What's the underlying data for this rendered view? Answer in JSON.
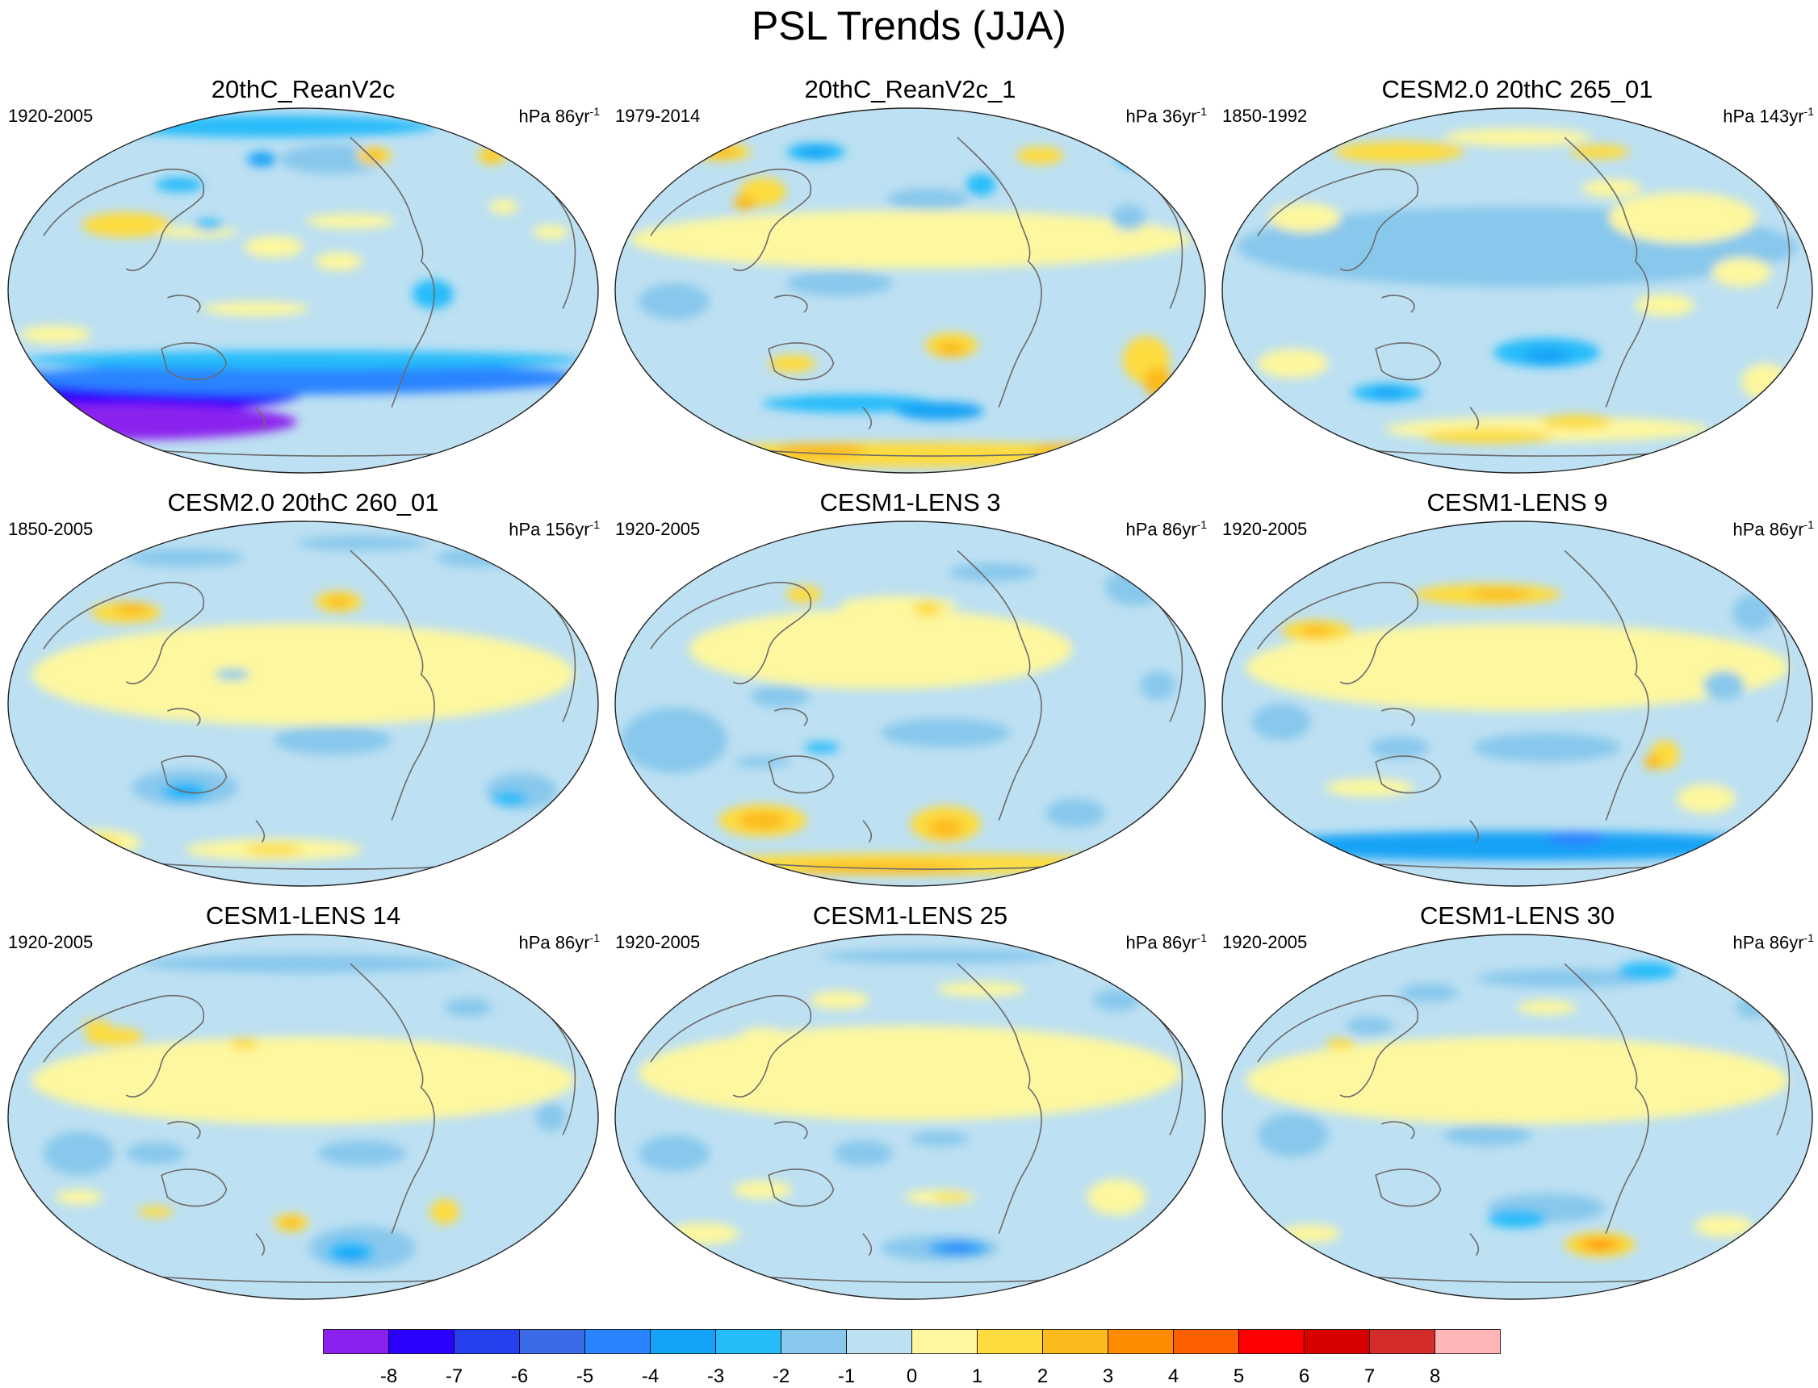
{
  "title": "PSL Trends (JJA)",
  "panels": [
    {
      "title": "20thC_ReanV2c",
      "period": "1920-2005",
      "units": "hPa 86yr",
      "units_exp": "-1",
      "blobs": [
        [
          0.1,
          0.78,
          0.8,
          0.12,
          -7
        ],
        [
          0.18,
          0.86,
          0.62,
          0.1,
          -8
        ],
        [
          0.5,
          0.74,
          0.95,
          0.09,
          -4
        ],
        [
          0.5,
          0.69,
          0.95,
          0.05,
          -2
        ],
        [
          0.56,
          0.42,
          0.08,
          0.05,
          1
        ],
        [
          0.2,
          0.32,
          0.15,
          0.07,
          2
        ],
        [
          0.45,
          0.38,
          0.1,
          0.06,
          1
        ],
        [
          0.45,
          0.05,
          0.55,
          0.06,
          -2
        ],
        [
          0.55,
          0.14,
          0.18,
          0.08,
          -1
        ],
        [
          0.43,
          0.14,
          0.05,
          0.04,
          -3
        ],
        [
          0.29,
          0.21,
          0.08,
          0.04,
          -2
        ],
        [
          0.32,
          0.34,
          0.14,
          0.03,
          1
        ],
        [
          0.34,
          0.32,
          0.05,
          0.03,
          -2
        ],
        [
          0.62,
          0.13,
          0.06,
          0.05,
          2
        ],
        [
          0.62,
          0.13,
          0.03,
          0.03,
          3
        ],
        [
          0.82,
          0.13,
          0.05,
          0.05,
          2
        ],
        [
          0.82,
          0.13,
          0.02,
          0.03,
          3
        ],
        [
          0.84,
          0.27,
          0.05,
          0.04,
          1
        ],
        [
          0.58,
          0.31,
          0.15,
          0.04,
          1
        ],
        [
          0.92,
          0.34,
          0.06,
          0.04,
          1
        ],
        [
          0.08,
          0.62,
          0.12,
          0.05,
          1
        ],
        [
          0.42,
          0.55,
          0.18,
          0.04,
          1
        ],
        [
          0.72,
          0.51,
          0.07,
          0.08,
          -2
        ]
      ]
    },
    {
      "title": "20thC_ReanV2c_1",
      "period": "1979-2014",
      "units": "hPa 36yr",
      "units_exp": "-1",
      "blobs": [
        [
          0.5,
          0.36,
          0.95,
          0.16,
          1
        ],
        [
          0.18,
          0.12,
          0.1,
          0.05,
          2
        ],
        [
          0.18,
          0.12,
          0.06,
          0.03,
          3
        ],
        [
          0.34,
          0.12,
          0.1,
          0.05,
          -2
        ],
        [
          0.34,
          0.12,
          0.06,
          0.03,
          -3
        ],
        [
          0.25,
          0.23,
          0.08,
          0.08,
          2
        ],
        [
          0.22,
          0.26,
          0.04,
          0.04,
          3
        ],
        [
          0.53,
          0.25,
          0.14,
          0.06,
          -1
        ],
        [
          0.72,
          0.13,
          0.08,
          0.05,
          2
        ],
        [
          0.89,
          0.14,
          0.08,
          0.05,
          -2
        ],
        [
          0.87,
          0.3,
          0.06,
          0.07,
          -1
        ],
        [
          0.62,
          0.21,
          0.05,
          0.06,
          -2
        ],
        [
          0.1,
          0.53,
          0.12,
          0.1,
          -1
        ],
        [
          0.38,
          0.48,
          0.18,
          0.07,
          -1
        ],
        [
          0.57,
          0.65,
          0.09,
          0.07,
          2
        ],
        [
          0.57,
          0.66,
          0.05,
          0.04,
          3
        ],
        [
          0.3,
          0.7,
          0.08,
          0.05,
          2
        ],
        [
          0.4,
          0.81,
          0.28,
          0.05,
          -2
        ],
        [
          0.55,
          0.83,
          0.15,
          0.05,
          -3
        ],
        [
          0.3,
          0.81,
          0.1,
          0.03,
          -2
        ],
        [
          0.9,
          0.69,
          0.08,
          0.13,
          2
        ],
        [
          0.92,
          0.75,
          0.05,
          0.08,
          3
        ],
        [
          0.5,
          0.95,
          0.9,
          0.07,
          2
        ],
        [
          0.35,
          0.94,
          0.15,
          0.04,
          3
        ],
        [
          0.78,
          0.94,
          0.15,
          0.04,
          3
        ]
      ]
    },
    {
      "title": "CESM2.0 20thC 265_01",
      "period": "1850-1992",
      "units": "hPa 143yr",
      "units_exp": "-1",
      "blobs": [
        [
          0.5,
          0.38,
          0.95,
          0.22,
          -1
        ],
        [
          0.78,
          0.3,
          0.25,
          0.14,
          1
        ],
        [
          0.14,
          0.3,
          0.12,
          0.08,
          1
        ],
        [
          0.3,
          0.12,
          0.22,
          0.06,
          2
        ],
        [
          0.5,
          0.08,
          0.25,
          0.05,
          1
        ],
        [
          0.64,
          0.12,
          0.1,
          0.04,
          2
        ],
        [
          0.66,
          0.22,
          0.1,
          0.05,
          1
        ],
        [
          0.92,
          0.15,
          0.08,
          0.08,
          1
        ],
        [
          0.88,
          0.45,
          0.1,
          0.08,
          1
        ],
        [
          0.75,
          0.54,
          0.1,
          0.06,
          1
        ],
        [
          0.55,
          0.67,
          0.18,
          0.08,
          -2
        ],
        [
          0.55,
          0.68,
          0.08,
          0.04,
          -3
        ],
        [
          0.28,
          0.78,
          0.12,
          0.05,
          -2
        ],
        [
          0.28,
          0.78,
          0.05,
          0.03,
          -3
        ],
        [
          0.55,
          0.88,
          0.55,
          0.07,
          1
        ],
        [
          0.45,
          0.9,
          0.22,
          0.04,
          2
        ],
        [
          0.6,
          0.86,
          0.12,
          0.04,
          2
        ],
        [
          0.12,
          0.7,
          0.12,
          0.08,
          1
        ],
        [
          0.92,
          0.75,
          0.08,
          0.1,
          1
        ]
      ]
    },
    {
      "title": "CESM2.0 20thC 260_01",
      "period": "1850-2005",
      "units": "hPa 156yr",
      "units_exp": "-1",
      "blobs": [
        [
          0.5,
          0.42,
          0.92,
          0.28,
          1
        ],
        [
          0.2,
          0.25,
          0.12,
          0.06,
          2
        ],
        [
          0.21,
          0.24,
          0.06,
          0.03,
          3
        ],
        [
          0.56,
          0.22,
          0.08,
          0.06,
          2
        ],
        [
          0.56,
          0.22,
          0.04,
          0.03,
          3
        ],
        [
          0.3,
          0.1,
          0.2,
          0.05,
          -1
        ],
        [
          0.8,
          0.1,
          0.15,
          0.05,
          -1
        ],
        [
          0.6,
          0.06,
          0.22,
          0.04,
          -1
        ],
        [
          0.38,
          0.42,
          0.06,
          0.03,
          -1
        ],
        [
          0.55,
          0.6,
          0.2,
          0.08,
          -1
        ],
        [
          0.3,
          0.73,
          0.18,
          0.1,
          -1
        ],
        [
          0.3,
          0.74,
          0.08,
          0.05,
          -2
        ],
        [
          0.3,
          0.74,
          0.04,
          0.02,
          -3
        ],
        [
          0.87,
          0.74,
          0.12,
          0.1,
          -1
        ],
        [
          0.85,
          0.76,
          0.06,
          0.04,
          -2
        ],
        [
          0.15,
          0.88,
          0.15,
          0.07,
          1
        ],
        [
          0.15,
          0.88,
          0.08,
          0.03,
          2
        ],
        [
          0.45,
          0.9,
          0.3,
          0.06,
          1
        ],
        [
          0.45,
          0.9,
          0.1,
          0.03,
          2
        ]
      ]
    },
    {
      "title": "CESM1-LENS 3",
      "period": "1920-2005",
      "units": "hPa 86yr",
      "units_exp": "-1",
      "blobs": [
        [
          0.45,
          0.35,
          0.65,
          0.22,
          1
        ],
        [
          0.1,
          0.6,
          0.18,
          0.18,
          -1
        ],
        [
          0.56,
          0.58,
          0.22,
          0.08,
          -1
        ],
        [
          0.28,
          0.48,
          0.1,
          0.06,
          -1
        ],
        [
          0.48,
          0.23,
          0.2,
          0.05,
          1
        ],
        [
          0.53,
          0.24,
          0.05,
          0.04,
          2
        ],
        [
          0.32,
          0.2,
          0.06,
          0.05,
          2
        ],
        [
          0.64,
          0.14,
          0.15,
          0.05,
          -1
        ],
        [
          0.88,
          0.18,
          0.1,
          0.1,
          -1
        ],
        [
          0.92,
          0.45,
          0.06,
          0.08,
          -1
        ],
        [
          0.25,
          0.82,
          0.15,
          0.09,
          2
        ],
        [
          0.25,
          0.82,
          0.08,
          0.05,
          3
        ],
        [
          0.56,
          0.83,
          0.12,
          0.1,
          2
        ],
        [
          0.56,
          0.84,
          0.06,
          0.05,
          3
        ],
        [
          0.5,
          0.94,
          0.85,
          0.06,
          2
        ],
        [
          0.45,
          0.95,
          0.3,
          0.03,
          3
        ],
        [
          0.78,
          0.8,
          0.1,
          0.08,
          -1
        ],
        [
          0.35,
          0.62,
          0.06,
          0.03,
          -2
        ],
        [
          0.25,
          0.66,
          0.1,
          0.03,
          -1
        ]
      ]
    },
    {
      "title": "CESM1-LENS 9",
      "period": "1920-2005",
      "units": "hPa 86yr",
      "units_exp": "-1",
      "blobs": [
        [
          0.5,
          0.4,
          0.92,
          0.24,
          1
        ],
        [
          0.45,
          0.2,
          0.25,
          0.06,
          2
        ],
        [
          0.47,
          0.2,
          0.1,
          0.03,
          3
        ],
        [
          0.16,
          0.3,
          0.12,
          0.06,
          2
        ],
        [
          0.16,
          0.3,
          0.05,
          0.03,
          3
        ],
        [
          0.9,
          0.25,
          0.07,
          0.1,
          -1
        ],
        [
          0.85,
          0.45,
          0.07,
          0.08,
          -1
        ],
        [
          0.1,
          0.55,
          0.1,
          0.1,
          -1
        ],
        [
          0.3,
          0.62,
          0.1,
          0.06,
          -1
        ],
        [
          0.55,
          0.62,
          0.25,
          0.08,
          -1
        ],
        [
          0.75,
          0.64,
          0.05,
          0.08,
          2
        ],
        [
          0.73,
          0.66,
          0.03,
          0.04,
          3
        ],
        [
          0.5,
          0.89,
          0.95,
          0.08,
          -3
        ],
        [
          0.6,
          0.87,
          0.1,
          0.04,
          -4
        ],
        [
          0.4,
          0.9,
          0.2,
          0.04,
          -3
        ],
        [
          0.25,
          0.73,
          0.15,
          0.05,
          1
        ],
        [
          0.82,
          0.76,
          0.1,
          0.08,
          1
        ]
      ]
    },
    {
      "title": "CESM1-LENS 14",
      "period": "1920-2005",
      "units": "hPa 86yr",
      "units_exp": "-1",
      "blobs": [
        [
          0.5,
          0.4,
          0.92,
          0.24,
          1
        ],
        [
          0.18,
          0.28,
          0.1,
          0.05,
          2
        ],
        [
          0.15,
          0.25,
          0.05,
          0.03,
          2
        ],
        [
          0.4,
          0.3,
          0.05,
          0.03,
          2
        ],
        [
          0.5,
          0.08,
          0.55,
          0.05,
          -1
        ],
        [
          0.78,
          0.2,
          0.08,
          0.05,
          -1
        ],
        [
          0.12,
          0.6,
          0.12,
          0.12,
          -1
        ],
        [
          0.25,
          0.6,
          0.1,
          0.06,
          -1
        ],
        [
          0.6,
          0.6,
          0.15,
          0.07,
          -1
        ],
        [
          0.6,
          0.86,
          0.18,
          0.12,
          -1
        ],
        [
          0.58,
          0.87,
          0.08,
          0.06,
          -2
        ],
        [
          0.58,
          0.88,
          0.05,
          0.03,
          -3
        ],
        [
          0.48,
          0.79,
          0.06,
          0.05,
          2
        ],
        [
          0.48,
          0.79,
          0.03,
          0.03,
          3
        ],
        [
          0.74,
          0.76,
          0.05,
          0.07,
          2
        ],
        [
          0.12,
          0.72,
          0.08,
          0.04,
          1
        ],
        [
          0.25,
          0.76,
          0.06,
          0.03,
          2
        ],
        [
          0.92,
          0.5,
          0.05,
          0.08,
          -1
        ]
      ]
    },
    {
      "title": "CESM1-LENS 25",
      "period": "1920-2005",
      "units": "hPa 86yr",
      "units_exp": "-1",
      "blobs": [
        [
          0.5,
          0.38,
          0.92,
          0.26,
          1
        ],
        [
          0.1,
          0.6,
          0.12,
          0.1,
          -1
        ],
        [
          0.38,
          0.18,
          0.1,
          0.05,
          1
        ],
        [
          0.25,
          0.28,
          0.08,
          0.05,
          1
        ],
        [
          0.55,
          0.06,
          0.4,
          0.04,
          -1
        ],
        [
          0.62,
          0.15,
          0.15,
          0.04,
          1
        ],
        [
          0.85,
          0.18,
          0.08,
          0.06,
          -1
        ],
        [
          0.42,
          0.6,
          0.1,
          0.07,
          -1
        ],
        [
          0.55,
          0.56,
          0.1,
          0.04,
          -1
        ],
        [
          0.55,
          0.72,
          0.12,
          0.04,
          1
        ],
        [
          0.57,
          0.72,
          0.06,
          0.02,
          2
        ],
        [
          0.55,
          0.86,
          0.2,
          0.07,
          -1
        ],
        [
          0.58,
          0.86,
          0.1,
          0.04,
          -3
        ],
        [
          0.58,
          0.86,
          0.05,
          0.02,
          -4
        ],
        [
          0.85,
          0.72,
          0.1,
          0.1,
          1
        ],
        [
          0.15,
          0.82,
          0.12,
          0.06,
          1
        ],
        [
          0.25,
          0.7,
          0.1,
          0.05,
          1
        ]
      ]
    },
    {
      "title": "CESM1-LENS 30",
      "period": "1920-2005",
      "units": "hPa 86yr",
      "units_exp": "-1",
      "blobs": [
        [
          0.5,
          0.4,
          0.92,
          0.24,
          1
        ],
        [
          0.12,
          0.55,
          0.12,
          0.12,
          -1
        ],
        [
          0.58,
          0.12,
          0.3,
          0.05,
          -1
        ],
        [
          0.72,
          0.1,
          0.1,
          0.05,
          -2
        ],
        [
          0.55,
          0.2,
          0.1,
          0.04,
          1
        ],
        [
          0.35,
          0.16,
          0.1,
          0.05,
          -1
        ],
        [
          0.25,
          0.25,
          0.08,
          0.05,
          -1
        ],
        [
          0.2,
          0.3,
          0.05,
          0.03,
          2
        ],
        [
          0.9,
          0.2,
          0.06,
          0.06,
          -1
        ],
        [
          0.45,
          0.55,
          0.15,
          0.06,
          -1
        ],
        [
          0.55,
          0.75,
          0.2,
          0.08,
          -1
        ],
        [
          0.5,
          0.78,
          0.1,
          0.05,
          -2
        ],
        [
          0.64,
          0.85,
          0.12,
          0.07,
          2
        ],
        [
          0.64,
          0.85,
          0.08,
          0.04,
          3
        ],
        [
          0.64,
          0.85,
          0.04,
          0.02,
          4
        ],
        [
          0.85,
          0.8,
          0.1,
          0.06,
          1
        ],
        [
          0.15,
          0.82,
          0.1,
          0.05,
          1
        ]
      ]
    }
  ],
  "colorbar": {
    "colors": [
      "#8b21ee",
      "#2c00ff",
      "#2640ef",
      "#3b6be8",
      "#2b84ff",
      "#14a3f6",
      "#25bcfa",
      "#88c8ec",
      "#bde0f2",
      "#fdf79f",
      "#fddc3f",
      "#fcbb1d",
      "#ff8c00",
      "#fe5f00",
      "#ff0000",
      "#d90000",
      "#d42b2b",
      "#ffb6b8"
    ],
    "labels": [
      "-8",
      "-7",
      "-6",
      "-5",
      "-4",
      "-3",
      "-2",
      "-1",
      "0",
      "1",
      "2",
      "3",
      "4",
      "5",
      "6",
      "7",
      "8"
    ]
  }
}
